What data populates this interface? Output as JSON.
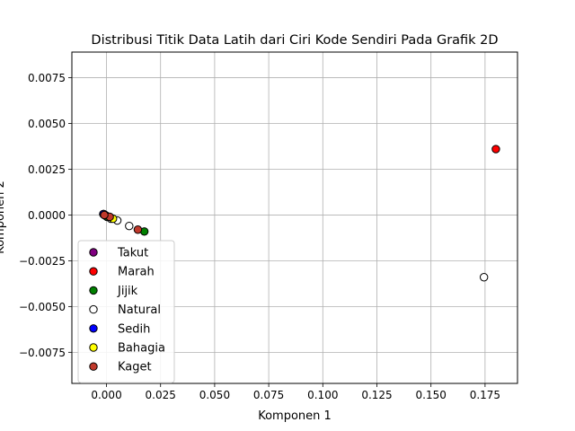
{
  "chart_data": {
    "type": "scatter",
    "title": "Distribusi Titik Data Latih dari Ciri Kode Sendiri Pada Grafik 2D",
    "xlabel": "Komponen 1",
    "ylabel": "Komponen 2",
    "xlim": [
      -0.016,
      0.19
    ],
    "ylim": [
      -0.0092,
      0.0089
    ],
    "xticks": [
      0.0,
      0.025,
      0.05,
      0.075,
      0.1,
      0.125,
      0.15,
      0.175
    ],
    "xtick_labels": [
      "0.000",
      "0.025",
      "0.050",
      "0.075",
      "0.100",
      "0.125",
      "0.150",
      "0.175"
    ],
    "yticks": [
      -0.0075,
      -0.005,
      -0.0025,
      0.0,
      0.0025,
      0.005,
      0.0075
    ],
    "ytick_labels": [
      "−0.0075",
      "−0.0050",
      "−0.0025",
      "0.0000",
      "0.0025",
      "0.0050",
      "0.0075"
    ],
    "grid": true,
    "legend_position": "lower-left",
    "series": [
      {
        "name": "Takut",
        "color": "#800080",
        "points": [
          [
            -0.0015,
            5e-05
          ],
          [
            -0.0008,
            0.0
          ],
          [
            0.0,
            -5e-05
          ]
        ]
      },
      {
        "name": "Marah",
        "color": "#ff0000",
        "points": [
          [
            0.18,
            0.0036
          ],
          [
            -0.001,
            0.0
          ],
          [
            0.0002,
            -0.0001
          ]
        ]
      },
      {
        "name": "Jijik",
        "color": "#008000",
        "points": [
          [
            0.0175,
            -0.0009
          ],
          [
            0.0003,
            -0.0001
          ]
        ]
      },
      {
        "name": "Natural",
        "color": "#ffffff",
        "points": [
          [
            0.1745,
            -0.0034
          ],
          [
            0.0105,
            -0.0006
          ],
          [
            0.005,
            -0.0003
          ],
          [
            0.002,
            -0.0002
          ],
          [
            -0.0012,
            5e-05
          ]
        ]
      },
      {
        "name": "Sedih",
        "color": "#0000ff",
        "points": [
          [
            -0.0014,
            5e-05
          ],
          [
            -0.0006,
            0.0
          ]
        ]
      },
      {
        "name": "Bahagia",
        "color": "#ffff00",
        "points": [
          [
            0.003,
            -0.0002
          ],
          [
            -0.0009,
            0.0
          ]
        ]
      },
      {
        "name": "Kaget",
        "color": "#c0392b",
        "points": [
          [
            0.0145,
            -0.0008
          ],
          [
            0.0015,
            -0.0001
          ],
          [
            -0.001,
            0.0
          ]
        ]
      }
    ]
  }
}
